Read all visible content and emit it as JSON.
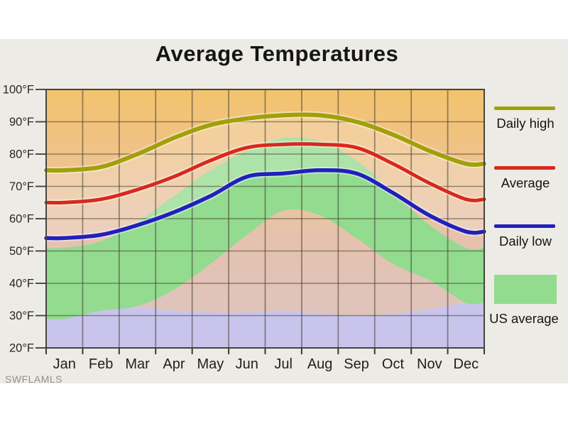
{
  "page": {
    "outer_bg": "#FFFFFF",
    "panel_bg": "#EDEBE5"
  },
  "header": {
    "title": "Average Temperatures"
  },
  "watermark": "SWFLAMLS",
  "legend": {
    "position": "right",
    "items": [
      {
        "label": "Daily high",
        "swatch": "line",
        "color": "#A1A00A"
      },
      {
        "label": "Average",
        "swatch": "line",
        "color": "#D8291B"
      },
      {
        "label": "Daily low",
        "swatch": "line",
        "color": "#2020BD"
      },
      {
        "label": "US average",
        "swatch": "box",
        "color": "#92DB8F"
      }
    ]
  },
  "chart_data": {
    "type": "line",
    "title": "Average Temperatures",
    "categories": [
      "Jan",
      "Feb",
      "Mar",
      "Apr",
      "May",
      "Jun",
      "Jul",
      "Aug",
      "Sep",
      "Oct",
      "Nov",
      "Dec"
    ],
    "unit": "°F",
    "ylim": [
      20,
      100
    ],
    "y_ticks": [
      100,
      90,
      80,
      70,
      60,
      50,
      40,
      30,
      20
    ],
    "grid": true,
    "series": [
      {
        "name": "Daily high",
        "color": "#A1A00A",
        "width": 6,
        "values": [
          75,
          76,
          80,
          85,
          89,
          91,
          92,
          92,
          90,
          86,
          81,
          77
        ]
      },
      {
        "name": "Average",
        "color": "#D8291B",
        "width": 5,
        "values": [
          65,
          66,
          69,
          73,
          78,
          82,
          83,
          83,
          82,
          77,
          71,
          66
        ]
      },
      {
        "name": "Daily low",
        "color": "#2020BD",
        "width": 5.5,
        "values": [
          54,
          55,
          58,
          62,
          67,
          73,
          74,
          75,
          74,
          68,
          61,
          56
        ]
      }
    ],
    "bands": [
      {
        "name": "US average range",
        "color": "#92DB8F",
        "upper": [
          51,
          53,
          59,
          67,
          75,
          81,
          85,
          84,
          78,
          68,
          58,
          51
        ],
        "lower": [
          29,
          31.5,
          33,
          38,
          46,
          55,
          62.5,
          61,
          54,
          46,
          41,
          34
        ]
      },
      {
        "name": "lower background",
        "color": "#C8C4EC",
        "upper": [
          29,
          31.5,
          32.5,
          31.5,
          31,
          31,
          31.5,
          30.5,
          30,
          30.5,
          32,
          34
        ],
        "lower": [
          20,
          20,
          20,
          20,
          20,
          20,
          20,
          20,
          20,
          20,
          20,
          20
        ]
      }
    ],
    "background_gradient": [
      "#F3C46E",
      "#F0C282",
      "#EBC49C",
      "#E5C2B0",
      "#E0C3BA",
      "#DEC3BE"
    ],
    "city_range_overlay_color": "rgba(253,246,242,0.26)",
    "grid_color": "rgba(70,64,50,0.55)",
    "axis_color": "#3A3A34",
    "tick_label_color": "#262626",
    "month_label_color": "#1F1F1F"
  }
}
